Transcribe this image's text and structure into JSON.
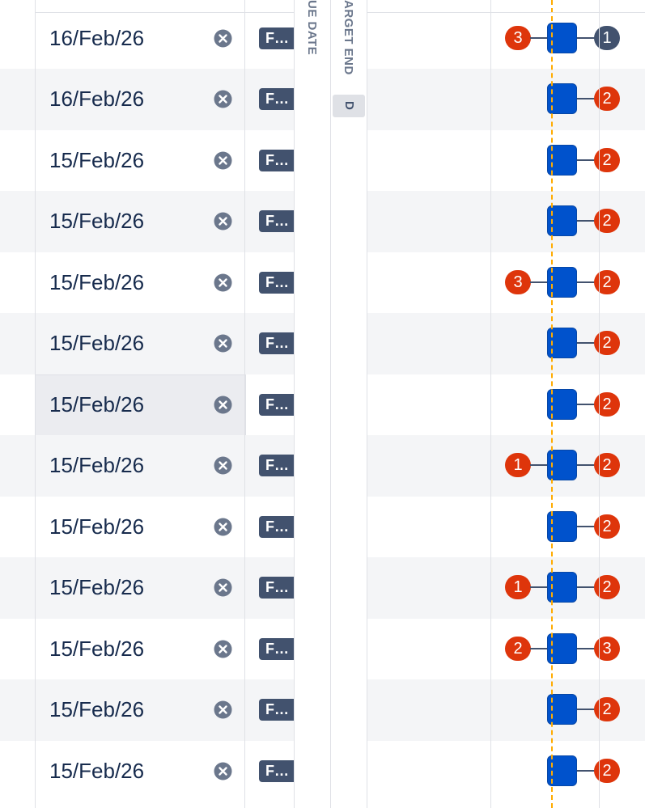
{
  "headers": {
    "due_date": "UE DATE",
    "target_end": "ARGET END",
    "target_end_tag": "D"
  },
  "rows": [
    {
      "date": "16/Feb/26",
      "status": "F…",
      "before": 3,
      "after": 1,
      "after_color": "#42526e"
    },
    {
      "date": "16/Feb/26",
      "status": "F…",
      "before": null,
      "after": 2,
      "after_color": "#de350b"
    },
    {
      "date": "15/Feb/26",
      "status": "F…",
      "before": null,
      "after": 2,
      "after_color": "#de350b"
    },
    {
      "date": "15/Feb/26",
      "status": "F…",
      "before": null,
      "after": 2,
      "after_color": "#de350b"
    },
    {
      "date": "15/Feb/26",
      "status": "F…",
      "before": 3,
      "after": 2,
      "after_color": "#de350b"
    },
    {
      "date": "15/Feb/26",
      "status": "F…",
      "before": null,
      "after": 2,
      "after_color": "#de350b"
    },
    {
      "date": "15/Feb/26",
      "status": "F…",
      "before": null,
      "after": 2,
      "after_color": "#de350b"
    },
    {
      "date": "15/Feb/26",
      "status": "F…",
      "before": 1,
      "after": 2,
      "after_color": "#de350b"
    },
    {
      "date": "15/Feb/26",
      "status": "F…",
      "before": null,
      "after": 2,
      "after_color": "#de350b"
    },
    {
      "date": "15/Feb/26",
      "status": "F…",
      "before": 1,
      "after": 2,
      "after_color": "#de350b"
    },
    {
      "date": "15/Feb/26",
      "status": "F…",
      "before": 2,
      "after": 3,
      "after_color": "#de350b"
    },
    {
      "date": "15/Feb/26",
      "status": "F…",
      "before": null,
      "after": 2,
      "after_color": "#de350b"
    },
    {
      "date": "15/Feb/26",
      "status": "F…",
      "before": null,
      "after": 2,
      "after_color": "#de350b"
    }
  ]
}
